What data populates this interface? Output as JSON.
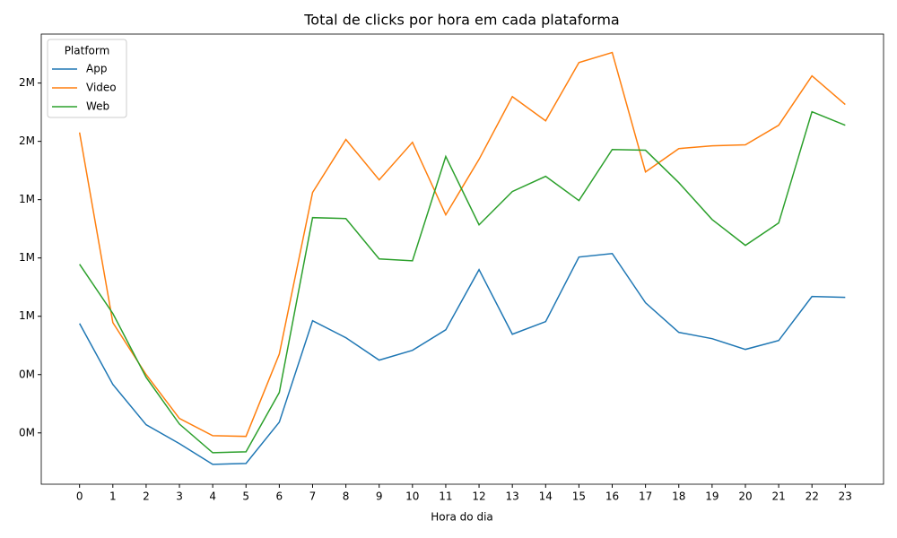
{
  "chart_data": {
    "type": "line",
    "title": "Total de clicks por hora em cada plataforma",
    "x_label": "Hora do dia",
    "legend_title": "Platform",
    "legend": "upper left",
    "grid": false,
    "x": [
      0,
      1,
      2,
      3,
      4,
      5,
      6,
      7,
      8,
      9,
      10,
      11,
      12,
      13,
      14,
      15,
      16,
      17,
      18,
      19,
      20,
      21,
      22,
      23
    ],
    "xlim": [
      -1.15,
      24.15
    ],
    "xticks": [
      0,
      1,
      2,
      3,
      4,
      5,
      6,
      7,
      8,
      9,
      10,
      11,
      12,
      13,
      14,
      15,
      16,
      17,
      18,
      19,
      20,
      21,
      22,
      23
    ],
    "ylim": [
      30000,
      1960000
    ],
    "yticks": [
      {
        "value": 250000,
        "label": "0M"
      },
      {
        "value": 500000,
        "label": "0M"
      },
      {
        "value": 750000,
        "label": "1M"
      },
      {
        "value": 1000000,
        "label": "1M"
      },
      {
        "value": 1250000,
        "label": "1M"
      },
      {
        "value": 1500000,
        "label": "2M"
      },
      {
        "value": 1750000,
        "label": "2M"
      }
    ],
    "series": [
      {
        "name": "App",
        "color": "#1f77b4",
        "values": [
          719000,
          458000,
          285000,
          204000,
          115000,
          119000,
          296000,
          731000,
          658000,
          562000,
          604000,
          692000,
          950000,
          673000,
          727000,
          1004000,
          1019000,
          808000,
          681000,
          654000,
          608000,
          646000,
          835000,
          831000
        ]
      },
      {
        "name": "Video",
        "color": "#ff7f0e",
        "values": [
          1538000,
          723000,
          500000,
          312000,
          238000,
          235000,
          588000,
          1281000,
          1508000,
          1335000,
          1496000,
          1185000,
          1423000,
          1692000,
          1588000,
          1838000,
          1881000,
          1369000,
          1469000,
          1481000,
          1485000,
          1569000,
          1781000,
          1658000
        ]
      },
      {
        "name": "Web",
        "color": "#2ca02c",
        "values": [
          973000,
          762000,
          488000,
          288000,
          165000,
          169000,
          423000,
          1173000,
          1169000,
          996000,
          988000,
          1435000,
          1142000,
          1285000,
          1350000,
          1246000,
          1465000,
          1462000,
          1323000,
          1165000,
          1054000,
          1150000,
          1627000,
          1569000
        ]
      }
    ]
  }
}
